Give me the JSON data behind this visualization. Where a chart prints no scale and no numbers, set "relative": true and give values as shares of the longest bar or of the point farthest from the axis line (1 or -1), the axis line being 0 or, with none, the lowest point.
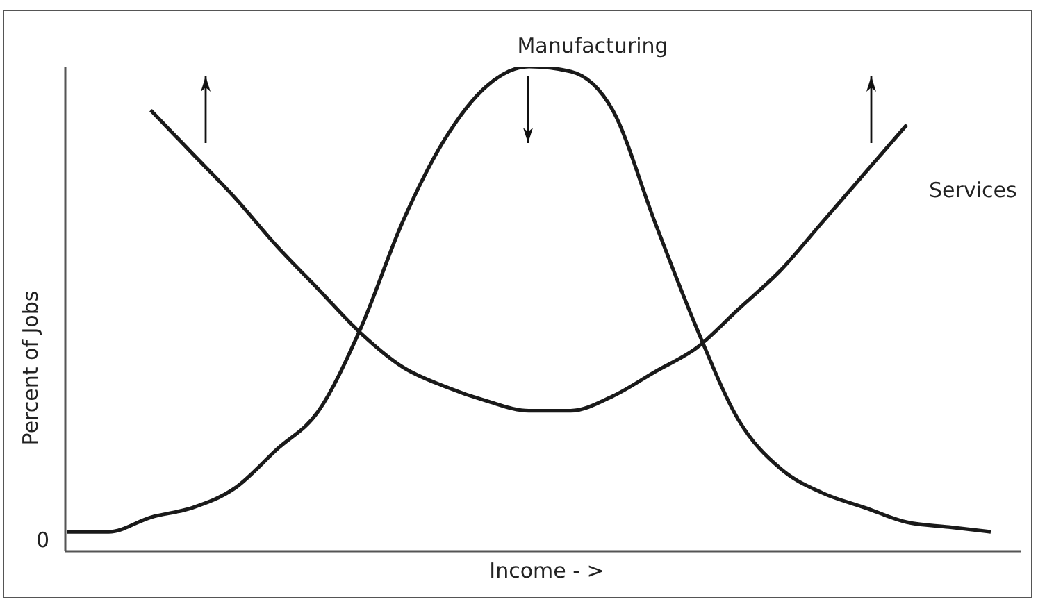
{
  "chart_data": {
    "type": "line",
    "relative": true,
    "xlabel": "Income - >",
    "ylabel": "Percent of Jobs",
    "categories": [
      null,
      null,
      null,
      null,
      null,
      null,
      null,
      null,
      null,
      null,
      null,
      null,
      null,
      null,
      null,
      null,
      null,
      null,
      null,
      null,
      null,
      null,
      null
    ],
    "series": [
      {
        "name": "Manufacturing",
        "color": "#1a1a1a",
        "values": [
          0.04,
          0.04,
          0.07,
          0.09,
          0.13,
          0.21,
          0.29,
          0.46,
          0.68,
          0.85,
          0.96,
          1.0,
          0.99,
          0.91,
          0.68,
          0.46,
          0.27,
          0.17,
          0.12,
          0.09,
          0.06,
          0.05,
          0.04
        ]
      },
      {
        "name": "Services",
        "color": "#1a1a1a",
        "values": [
          null,
          null,
          0.91,
          0.82,
          0.73,
          0.63,
          0.54,
          0.45,
          0.38,
          0.34,
          0.31,
          0.29,
          0.29,
          0.32,
          0.37,
          0.42,
          0.5,
          0.58,
          0.68,
          0.78,
          0.88,
          null,
          null
        ]
      }
    ],
    "annotations": [
      "0"
    ],
    "legend": false,
    "grid": false,
    "marker": "none",
    "line_style": "solid"
  }
}
